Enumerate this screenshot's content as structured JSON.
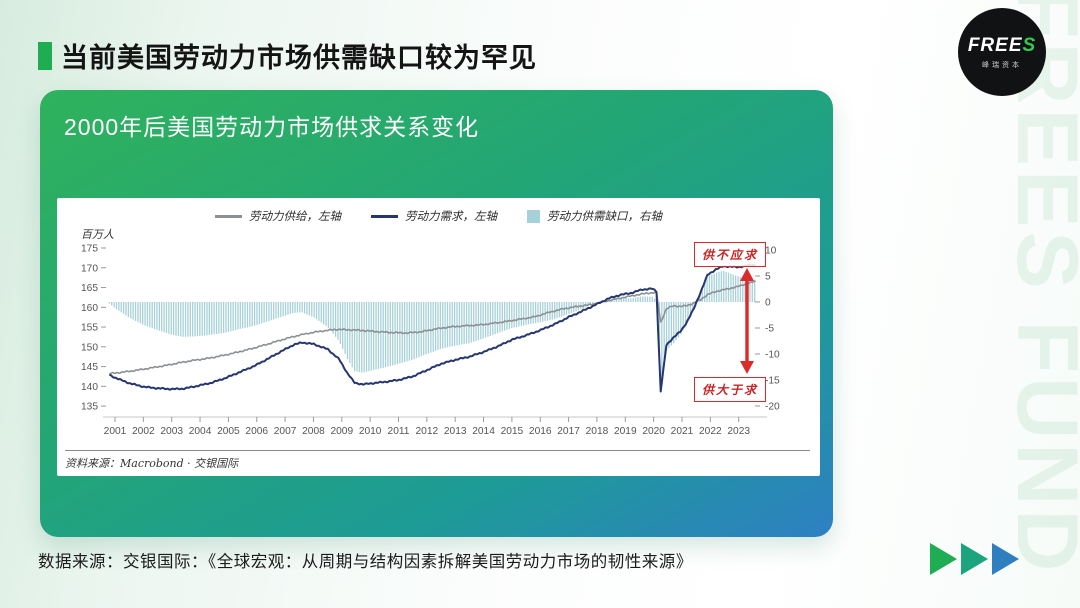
{
  "slide": {
    "title": "当前美国劳动力市场供需缺口较为罕见",
    "caption": "数据来源：交银国际：《全球宏观：从周期与结构因素拆解美国劳动力市场的韧性来源》"
  },
  "logo": {
    "brand": "FREE",
    "brand_accent": "S",
    "subtitle": "峰瑞资本",
    "watermark": "FREES FUND"
  },
  "card": {
    "title": "2000年后美国劳动力市场供求关系变化"
  },
  "chart_data": {
    "type": "line+bar",
    "title": "2000年后美国劳动力市场供求关系变化",
    "unit_label": "百万人",
    "source_note": "资料来源：Macrobond · 交银国际",
    "colors": {
      "supply_line": "#8b9094",
      "demand_line": "#26366e",
      "gap_bar": "#a7d1d8",
      "axis_text": "#555555",
      "annotation_red": "#d92b2b"
    },
    "legend": [
      {
        "label": "劳动力供给，左轴",
        "type": "line",
        "color": "#8b9094"
      },
      {
        "label": "劳动力需求，左轴",
        "type": "line",
        "color": "#26366e"
      },
      {
        "label": "劳动力供需缺口，右轴",
        "type": "bar",
        "color": "#a7d1d8"
      }
    ],
    "left_axis": {
      "min": 135,
      "max": 175,
      "ticks": [
        135,
        140,
        145,
        150,
        155,
        160,
        165,
        170,
        175
      ]
    },
    "right_axis": {
      "min": -20,
      "max": 10,
      "ticks": [
        -20,
        -15,
        -10,
        -5,
        0,
        5,
        10
      ]
    },
    "x_ticks": [
      2001,
      2002,
      2003,
      2004,
      2005,
      2006,
      2007,
      2008,
      2009,
      2010,
      2011,
      2012,
      2013,
      2014,
      2015,
      2016,
      2017,
      2018,
      2019,
      2020,
      2021,
      2022,
      2023
    ],
    "series": {
      "supply_left_axis": [
        [
          2000.8,
          143.2
        ],
        [
          2001.3,
          143.6
        ],
        [
          2001.8,
          144.1
        ],
        [
          2002.3,
          144.7
        ],
        [
          2002.8,
          145.3
        ],
        [
          2003.3,
          146.0
        ],
        [
          2003.8,
          146.6
        ],
        [
          2004.3,
          147.1
        ],
        [
          2004.8,
          147.8
        ],
        [
          2005.3,
          148.6
        ],
        [
          2005.8,
          149.5
        ],
        [
          2006.3,
          150.5
        ],
        [
          2006.8,
          151.6
        ],
        [
          2007.3,
          152.6
        ],
        [
          2007.8,
          153.4
        ],
        [
          2008.3,
          154.0
        ],
        [
          2008.8,
          154.4
        ],
        [
          2009.3,
          154.3
        ],
        [
          2009.8,
          154.1
        ],
        [
          2010.3,
          153.8
        ],
        [
          2010.8,
          153.6
        ],
        [
          2011.3,
          153.5
        ],
        [
          2011.8,
          153.8
        ],
        [
          2012.3,
          154.5
        ],
        [
          2012.8,
          155.0
        ],
        [
          2013.3,
          155.3
        ],
        [
          2013.8,
          155.5
        ],
        [
          2014.3,
          155.9
        ],
        [
          2014.8,
          156.4
        ],
        [
          2015.3,
          157.0
        ],
        [
          2015.8,
          157.6
        ],
        [
          2016.3,
          158.7
        ],
        [
          2016.8,
          159.6
        ],
        [
          2017.3,
          160.2
        ],
        [
          2017.8,
          160.7
        ],
        [
          2018.3,
          161.5
        ],
        [
          2018.8,
          162.3
        ],
        [
          2019.3,
          163.0
        ],
        [
          2019.8,
          163.6
        ],
        [
          2020.1,
          163.7
        ],
        [
          2020.25,
          156.2
        ],
        [
          2020.45,
          159.6
        ],
        [
          2020.7,
          160.4
        ],
        [
          2020.95,
          160.2
        ],
        [
          2021.15,
          160.4
        ],
        [
          2021.4,
          161.0
        ],
        [
          2021.65,
          161.9
        ],
        [
          2021.9,
          163.2
        ],
        [
          2022.2,
          164.0
        ],
        [
          2022.45,
          164.4
        ],
        [
          2022.7,
          164.8
        ],
        [
          2022.95,
          165.2
        ],
        [
          2023.2,
          165.8
        ],
        [
          2023.45,
          166.3
        ],
        [
          2023.6,
          166.6
        ]
      ],
      "demand_left_axis": [
        [
          2000.8,
          142.9
        ],
        [
          2001.0,
          142.2
        ],
        [
          2001.5,
          140.8
        ],
        [
          2002.0,
          139.9
        ],
        [
          2002.5,
          139.5
        ],
        [
          2003.0,
          139.3
        ],
        [
          2003.4,
          139.4
        ],
        [
          2003.9,
          140.1
        ],
        [
          2004.4,
          140.9
        ],
        [
          2004.9,
          142.1
        ],
        [
          2005.4,
          143.6
        ],
        [
          2005.9,
          145.1
        ],
        [
          2006.4,
          147.0
        ],
        [
          2006.9,
          149.0
        ],
        [
          2007.3,
          150.5
        ],
        [
          2007.6,
          151.1
        ],
        [
          2008.0,
          150.7
        ],
        [
          2008.5,
          149.4
        ],
        [
          2008.9,
          146.9
        ],
        [
          2009.2,
          143.3
        ],
        [
          2009.45,
          140.9
        ],
        [
          2009.75,
          140.5
        ],
        [
          2010.1,
          140.8
        ],
        [
          2010.5,
          141.1
        ],
        [
          2011.0,
          141.6
        ],
        [
          2011.5,
          142.5
        ],
        [
          2012.0,
          144.1
        ],
        [
          2012.5,
          145.7
        ],
        [
          2013.0,
          146.7
        ],
        [
          2013.5,
          147.5
        ],
        [
          2014.0,
          148.7
        ],
        [
          2014.5,
          150.1
        ],
        [
          2015.0,
          151.8
        ],
        [
          2015.5,
          152.9
        ],
        [
          2016.0,
          154.2
        ],
        [
          2016.5,
          155.7
        ],
        [
          2017.0,
          157.5
        ],
        [
          2017.5,
          159.1
        ],
        [
          2018.0,
          160.8
        ],
        [
          2018.4,
          162.2
        ],
        [
          2018.8,
          163.1
        ],
        [
          2019.2,
          163.6
        ],
        [
          2019.6,
          164.5
        ],
        [
          2019.95,
          164.7
        ],
        [
          2020.1,
          164.0
        ],
        [
          2020.25,
          138.8
        ],
        [
          2020.45,
          150.4
        ],
        [
          2020.7,
          152.4
        ],
        [
          2020.95,
          153.9
        ],
        [
          2021.15,
          156.0
        ],
        [
          2021.4,
          159.4
        ],
        [
          2021.65,
          163.7
        ],
        [
          2021.9,
          168.2
        ],
        [
          2022.2,
          169.6
        ],
        [
          2022.45,
          170.4
        ],
        [
          2022.7,
          170.3
        ],
        [
          2022.95,
          170.2
        ],
        [
          2023.2,
          170.4
        ],
        [
          2023.45,
          170.7
        ],
        [
          2023.6,
          170.6
        ]
      ],
      "gap_right_axis": [
        [
          2000.8,
          -0.3
        ],
        [
          2001.0,
          -1.2
        ],
        [
          2001.5,
          -3.0
        ],
        [
          2002.0,
          -4.4
        ],
        [
          2002.5,
          -5.4
        ],
        [
          2003.0,
          -6.3
        ],
        [
          2003.4,
          -6.7
        ],
        [
          2003.9,
          -6.6
        ],
        [
          2004.4,
          -6.3
        ],
        [
          2004.9,
          -5.9
        ],
        [
          2005.4,
          -5.2
        ],
        [
          2005.9,
          -4.6
        ],
        [
          2006.4,
          -3.7
        ],
        [
          2006.9,
          -2.8
        ],
        [
          2007.3,
          -2.1
        ],
        [
          2007.6,
          -2.0
        ],
        [
          2008.0,
          -2.9
        ],
        [
          2008.5,
          -4.8
        ],
        [
          2008.9,
          -7.5
        ],
        [
          2009.2,
          -11.0
        ],
        [
          2009.45,
          -13.3
        ],
        [
          2009.75,
          -13.6
        ],
        [
          2010.1,
          -13.1
        ],
        [
          2010.5,
          -12.6
        ],
        [
          2011.0,
          -11.9
        ],
        [
          2011.5,
          -11.1
        ],
        [
          2012.0,
          -10.0
        ],
        [
          2012.5,
          -9.0
        ],
        [
          2013.0,
          -8.4
        ],
        [
          2013.5,
          -7.9
        ],
        [
          2014.0,
          -7.0
        ],
        [
          2014.5,
          -6.0
        ],
        [
          2015.0,
          -5.0
        ],
        [
          2015.5,
          -4.4
        ],
        [
          2016.0,
          -3.9
        ],
        [
          2016.5,
          -3.3
        ],
        [
          2017.0,
          -2.3
        ],
        [
          2017.5,
          -1.3
        ],
        [
          2018.0,
          -0.2
        ],
        [
          2018.4,
          0.5
        ],
        [
          2018.8,
          0.8
        ],
        [
          2019.2,
          0.7
        ],
        [
          2019.6,
          1.1
        ],
        [
          2019.95,
          1.0
        ],
        [
          2020.1,
          0.3
        ],
        [
          2020.25,
          -17.4
        ],
        [
          2020.45,
          -9.2
        ],
        [
          2020.7,
          -8.0
        ],
        [
          2020.95,
          -6.3
        ],
        [
          2021.15,
          -4.4
        ],
        [
          2021.4,
          -1.6
        ],
        [
          2021.65,
          1.8
        ],
        [
          2021.9,
          5.0
        ],
        [
          2022.2,
          5.6
        ],
        [
          2022.45,
          6.0
        ],
        [
          2022.7,
          5.5
        ],
        [
          2022.95,
          5.0
        ],
        [
          2023.2,
          4.6
        ],
        [
          2023.45,
          4.4
        ],
        [
          2023.6,
          4.0
        ]
      ]
    },
    "annotations": [
      {
        "text": "供不应求"
      },
      {
        "text": "供大于求"
      }
    ]
  }
}
